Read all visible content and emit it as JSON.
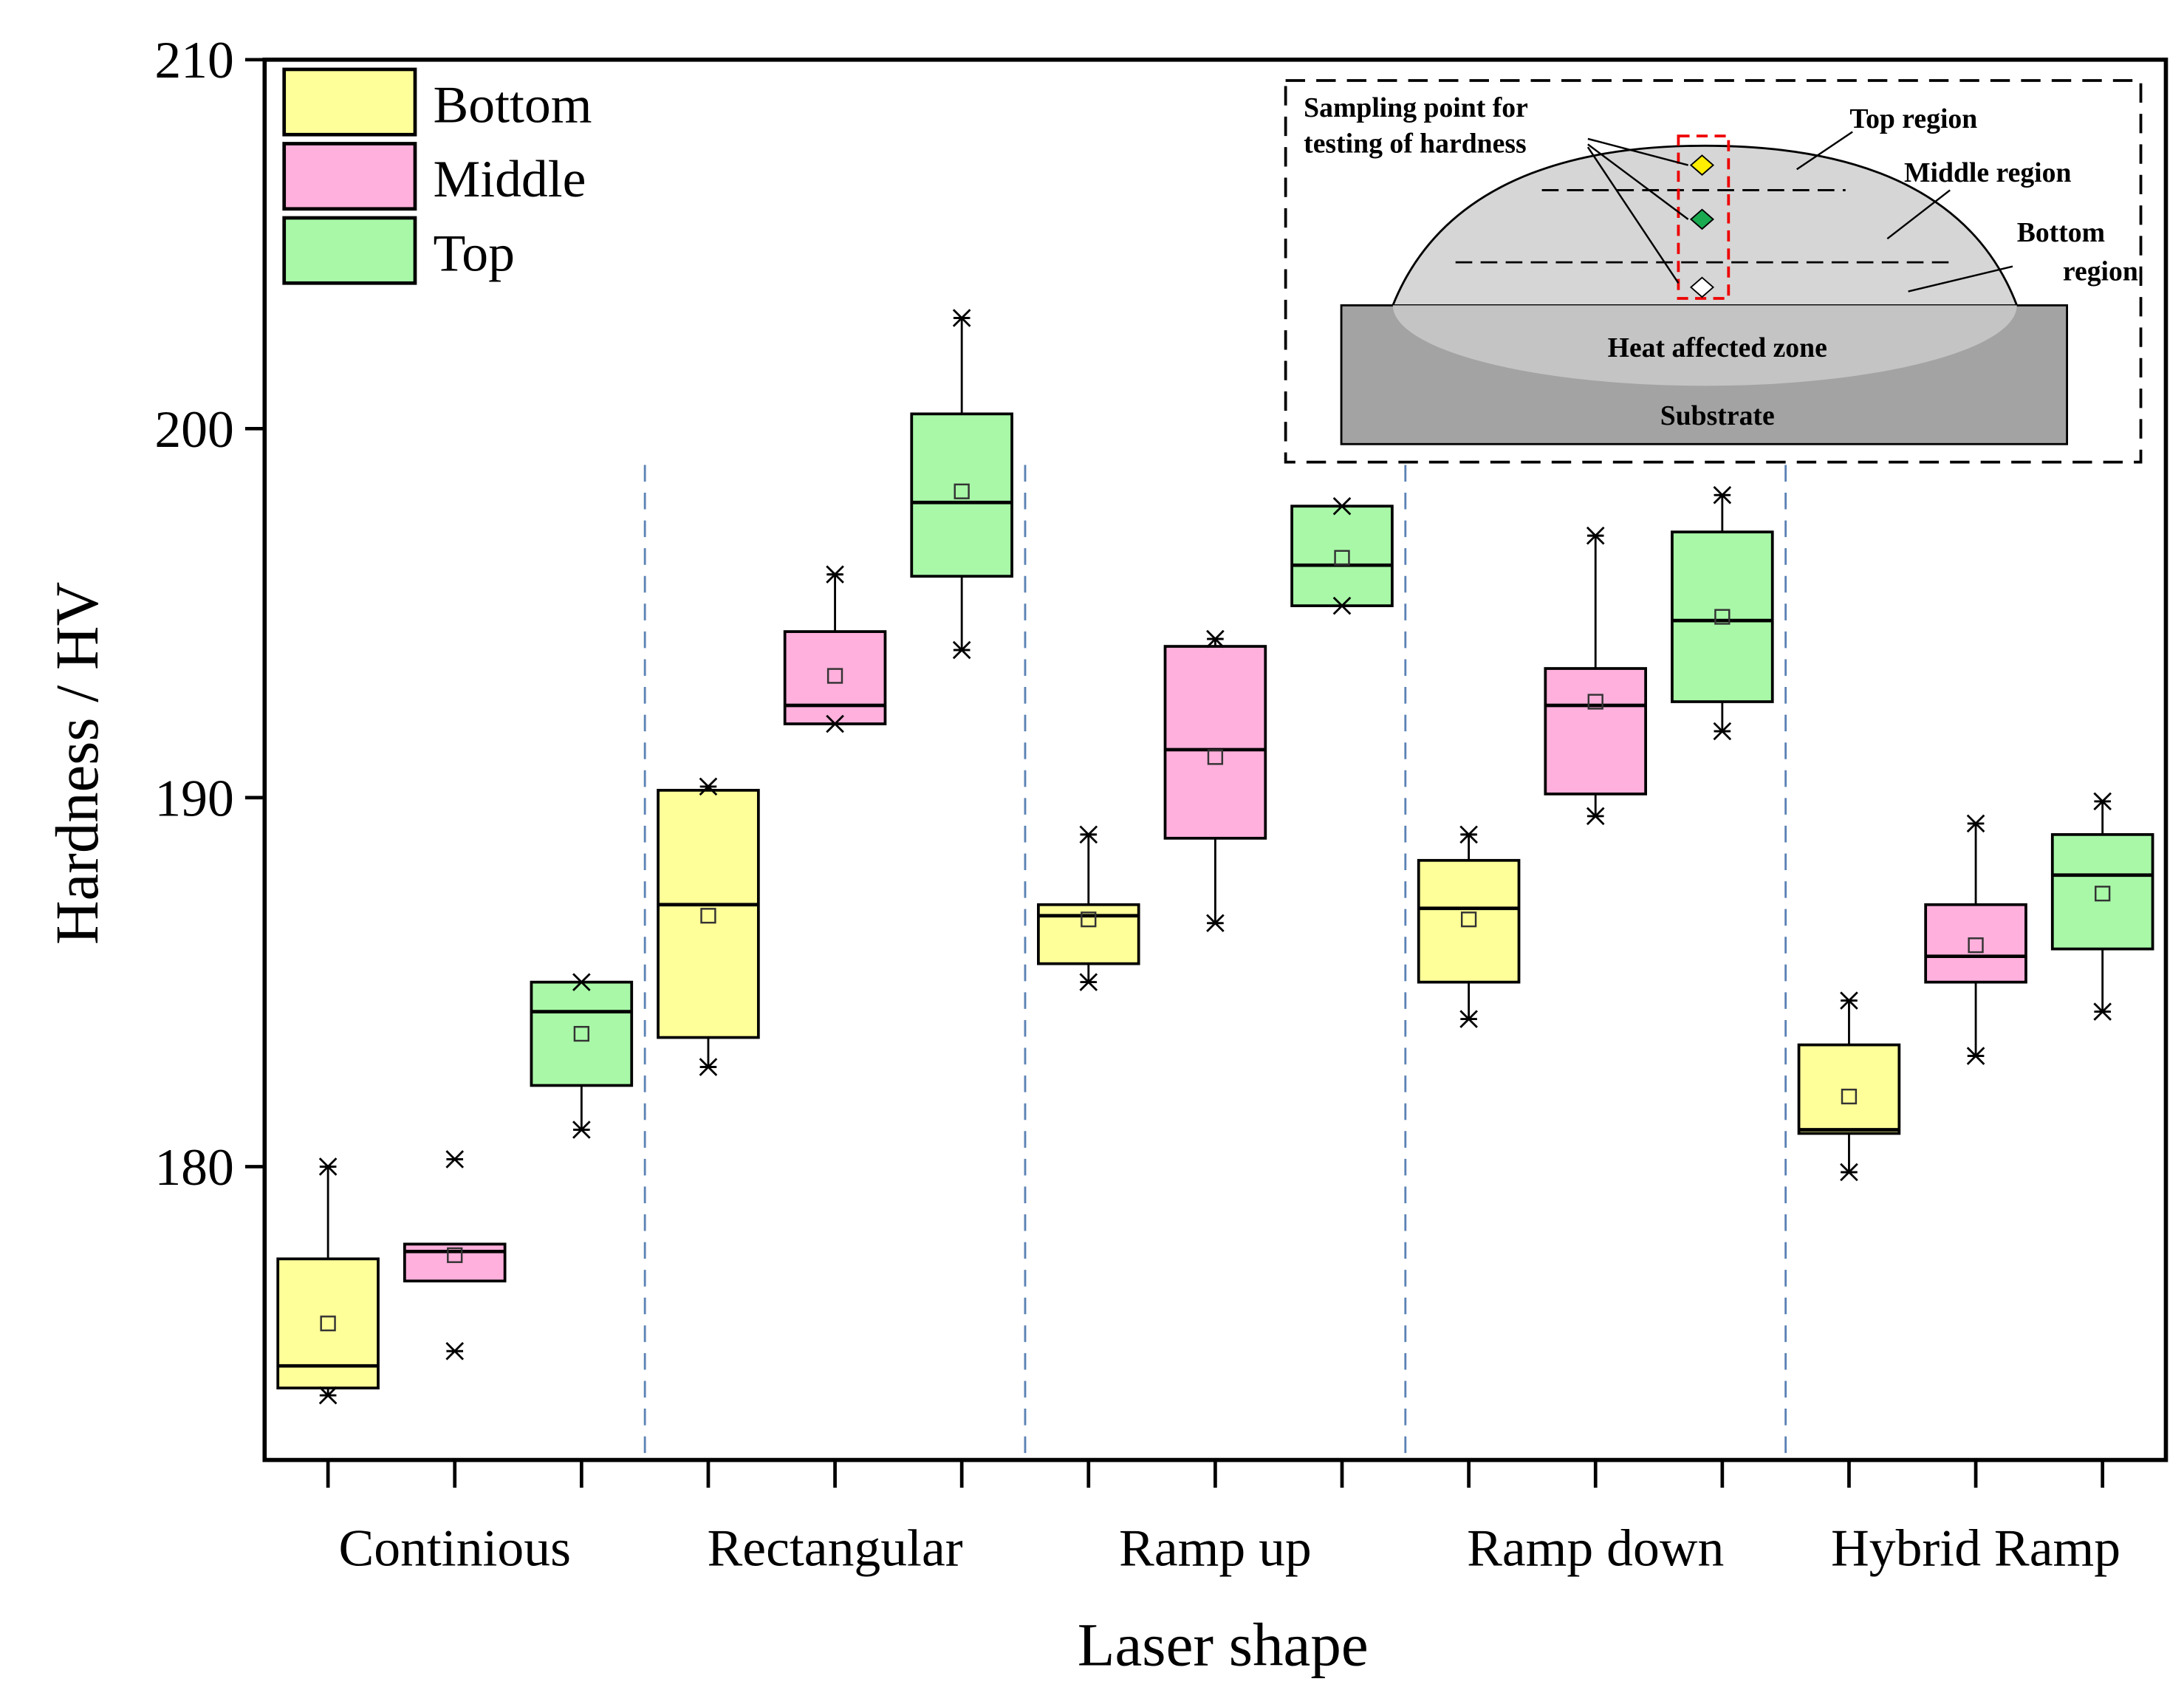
{
  "chart_data": {
    "type": "box",
    "x_label": "Laser shape",
    "y_label": "Hardness / HV",
    "categories": [
      "Continious",
      "Rectangular",
      "Ramp up",
      "Ramp down",
      "Hybrid Ramp"
    ],
    "ylim": [
      172.05,
      210
    ],
    "yticks": [
      180,
      190,
      200,
      210
    ],
    "legend": "upper left",
    "series": [
      {
        "name": "Bottom",
        "color": "#ffff99",
        "whisker_low": [
          173.8,
          182.7,
          185.0,
          184.0,
          179.85
        ],
        "q1": [
          174.0,
          183.5,
          185.5,
          185.0,
          180.9
        ],
        "median": [
          174.6,
          187.1,
          186.8,
          187.0,
          181.0
        ],
        "q3": [
          177.5,
          190.2,
          187.1,
          188.3,
          183.3
        ],
        "whisker_high": [
          180.0,
          190.3,
          189.0,
          189.0,
          184.5
        ],
        "mean": [
          175.75,
          186.8,
          186.7,
          186.7,
          181.9
        ],
        "min": [
          173.8,
          182.7,
          185.0,
          184.0,
          179.85
        ],
        "max": [
          180.0,
          190.3,
          189.0,
          189.0,
          184.5
        ]
      },
      {
        "name": "Middle",
        "color": "#ffb0dc",
        "whisker_low": [
          176.9,
          192.0,
          186.6,
          189.5,
          183.0
        ],
        "q1": [
          176.9,
          192.0,
          188.9,
          190.1,
          185.0
        ],
        "median": [
          177.7,
          192.5,
          191.3,
          192.5,
          185.7
        ],
        "q3": [
          177.9,
          194.5,
          194.1,
          193.5,
          187.1
        ],
        "whisker_high": [
          177.9,
          196.05,
          194.3,
          197.1,
          189.3
        ],
        "mean": [
          177.6,
          193.3,
          191.1,
          192.6,
          186.0
        ],
        "min": [
          175.0,
          192.0,
          186.6,
          189.5,
          183.0
        ],
        "max": [
          180.2,
          196.05,
          194.3,
          197.1,
          189.3
        ]
      },
      {
        "name": "Top",
        "color": "#a8f8a8",
        "whisker_low": [
          181.0,
          194.0,
          195.2,
          191.8,
          184.2
        ],
        "q1": [
          182.2,
          196.0,
          195.2,
          192.6,
          185.9
        ],
        "median": [
          184.2,
          198.0,
          196.3,
          194.8,
          187.9
        ],
        "q3": [
          185.0,
          200.4,
          197.9,
          197.2,
          189.0
        ],
        "whisker_high": [
          185.0,
          203.0,
          197.9,
          198.2,
          189.9
        ],
        "mean": [
          183.6,
          198.3,
          196.5,
          194.9,
          187.4
        ],
        "min": [
          181.0,
          194.0,
          195.2,
          191.8,
          184.2
        ],
        "max": [
          185.0,
          203.0,
          197.9,
          198.2,
          189.9
        ]
      }
    ],
    "inset": {
      "sampling_label": [
        "Sampling point for",
        "testing of hardness"
      ],
      "top_region": "Top region",
      "middle_region": "Middle region",
      "bottom_region": [
        "Bottom",
        "region"
      ],
      "haz": "Heat affected zone",
      "substrate": "Substrate"
    }
  }
}
